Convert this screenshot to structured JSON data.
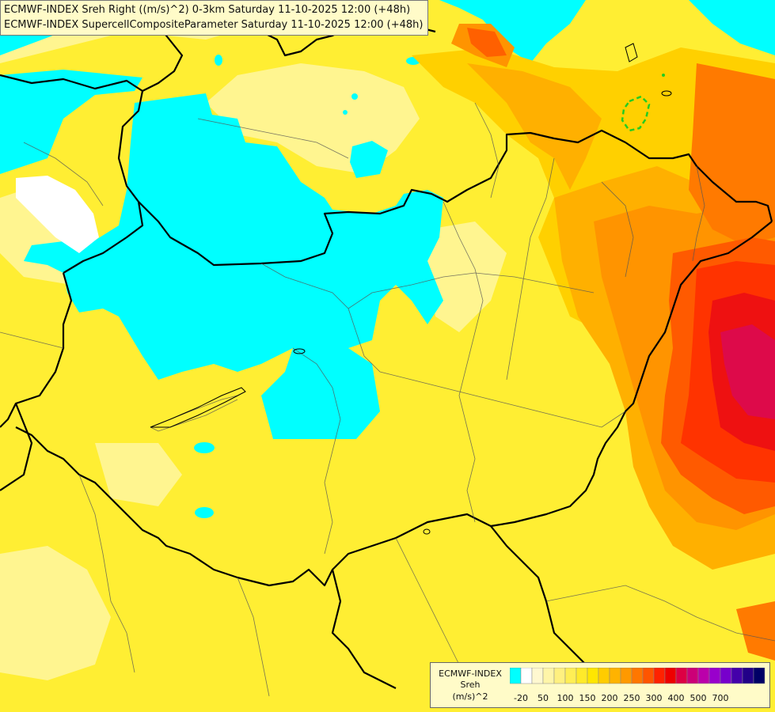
{
  "titles": {
    "line1": "ECMWF-INDEX Sreh Right ((m/s)^2) 0-3km Saturday 11-10-2025 12:00 (+48h)",
    "line2": "ECMWF-INDEX SupercellCompositeParameter Saturday 11-10-2025 12:00 (+48h)"
  },
  "legend": {
    "product": "ECMWF-INDEX",
    "parameter": "Sreh",
    "unit": "(m/s)^2",
    "swatch_colors": [
      "#00ffff",
      "#ffffff",
      "#fff8d0",
      "#fff5a8",
      "#fff080",
      "#ffee55",
      "#ffea2a",
      "#ffe600",
      "#ffcc00",
      "#ffb300",
      "#ff9900",
      "#ff7700",
      "#ff5500",
      "#ff2200",
      "#ee0000",
      "#dd0044",
      "#cc0077",
      "#bb00aa",
      "#9900cc",
      "#7700cc",
      "#4400aa",
      "#220088",
      "#000066"
    ],
    "ticks": [
      {
        "label": "-20",
        "index": 0
      },
      {
        "label": "50",
        "index": 2
      },
      {
        "label": "100",
        "index": 4
      },
      {
        "label": "150",
        "index": 6
      },
      {
        "label": "200",
        "index": 8
      },
      {
        "label": "250",
        "index": 10
      },
      {
        "label": "300",
        "index": 12
      },
      {
        "label": "400",
        "index": 14
      },
      {
        "label": "500",
        "index": 16
      },
      {
        "label": "700",
        "index": 18
      }
    ]
  }
}
